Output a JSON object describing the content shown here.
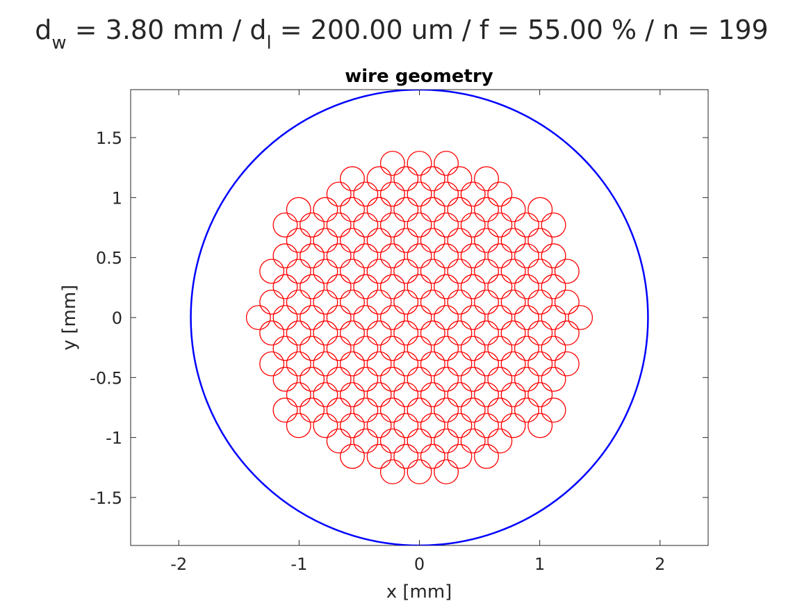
{
  "suptitle": {
    "d_main": "d",
    "d_sub": "w",
    "part1": " = 3.80 mm / d",
    "l_sub": "l",
    "part2": " = 200.00 um / f = 55.00 % / n = 199"
  },
  "chart_data": {
    "type": "scatter",
    "title": "wire geometry",
    "xlabel": "x [mm]",
    "ylabel": "y [mm]",
    "xlim": [
      -2.4,
      2.4
    ],
    "ylim": [
      -1.9,
      1.9
    ],
    "xticks": [
      -2,
      -1,
      0,
      1,
      2
    ],
    "xtick_labels": [
      "-2",
      "-1",
      "0",
      "1",
      "2"
    ],
    "yticks": [
      -1.5,
      -1,
      -0.5,
      0,
      0.5,
      1,
      1.5
    ],
    "ytick_labels": [
      "-1.5",
      "-1",
      "-0.5",
      "0",
      "0.5",
      "1",
      "1.5"
    ],
    "grid": false,
    "outer_wire": {
      "center": [
        0,
        0
      ],
      "diameter_mm": 3.8,
      "color": "#0000ff"
    },
    "strand": {
      "diameter_mm": 0.2,
      "color": "#ff0000"
    },
    "strand_pitch_mm": 0.223,
    "strand_row_spacing_mm": 0.1286,
    "strand_count": 199
  }
}
